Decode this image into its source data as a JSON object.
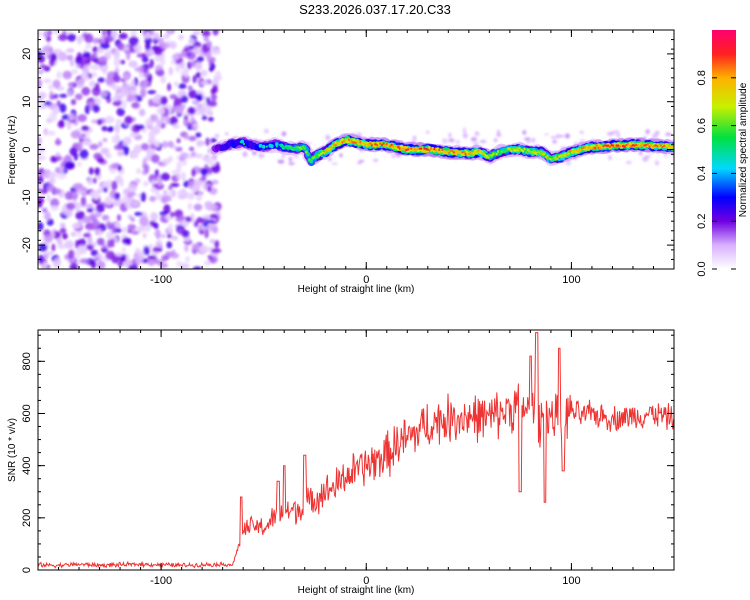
{
  "title": "S233.2026.037.17.20.C33",
  "chart_data": [
    {
      "type": "heatmap",
      "title": "S233.2026.037.17.20.C33",
      "xlabel": "Height of straight line (km)",
      "ylabel": "Frequency (Hz)",
      "xlim": [
        -160,
        150
      ],
      "ylim": [
        -25,
        25
      ],
      "xticks": [
        -100,
        0,
        100
      ],
      "xtick_labels": [
        "-100",
        "0",
        "100"
      ],
      "yticks": [
        -20,
        -10,
        0,
        10,
        20
      ],
      "ytick_labels": [
        "-20",
        "-10",
        "0",
        "10",
        "20"
      ],
      "noise_region_x": [
        -160,
        -74
      ],
      "signal_track": {
        "x": [
          -74,
          -70,
          -65,
          -60,
          -55,
          -50,
          -45,
          -40,
          -35,
          -30,
          -27,
          -25,
          -20,
          -15,
          -10,
          -5,
          0,
          10,
          20,
          30,
          40,
          50,
          55,
          60,
          65,
          70,
          75,
          80,
          85,
          90,
          95,
          100,
          110,
          120,
          130,
          140,
          150
        ],
        "y": [
          0,
          0.5,
          1.2,
          1.5,
          0.8,
          0.5,
          1.0,
          0.5,
          0.2,
          0.5,
          -2.5,
          -1.5,
          -0.5,
          1.0,
          2.0,
          1.5,
          1.0,
          1.0,
          0.0,
          0.0,
          -0.5,
          -0.8,
          -0.5,
          -1.5,
          -0.5,
          0.0,
          0.0,
          -0.5,
          -0.5,
          -2.0,
          -1.5,
          -0.5,
          0.5,
          0.8,
          1.0,
          0.8,
          0.5
        ],
        "amplitude": [
          0.3,
          0.4,
          0.5,
          0.5,
          0.45,
          0.5,
          0.5,
          0.55,
          0.6,
          0.65,
          0.6,
          0.65,
          0.75,
          0.8,
          0.85,
          0.85,
          0.85,
          0.85,
          0.9,
          0.9,
          0.85,
          0.85,
          0.8,
          0.7,
          0.65,
          0.7,
          0.75,
          0.7,
          0.75,
          0.7,
          0.75,
          0.8,
          0.85,
          0.9,
          0.9,
          0.85,
          0.8
        ]
      },
      "colorbar": {
        "label": "Normalized spectral amplitude",
        "range": [
          0,
          1
        ],
        "ticks": [
          0.0,
          0.2,
          0.4,
          0.6,
          0.8
        ],
        "tick_labels": [
          "0.0",
          "0.2",
          "0.4",
          "0.6",
          "0.8"
        ]
      }
    },
    {
      "type": "line",
      "xlabel": "Height of straight line (km)",
      "ylabel": "SNR (10 * v/v)",
      "xlim": [
        -160,
        150
      ],
      "ylim": [
        0,
        920
      ],
      "xticks": [
        -100,
        0,
        100
      ],
      "xtick_labels": [
        "-100",
        "0",
        "100"
      ],
      "yticks": [
        0,
        200,
        400,
        600,
        800
      ],
      "ytick_labels": [
        "0",
        "200",
        "400",
        "600",
        "800"
      ],
      "color": "#ee3333",
      "series": [
        {
          "name": "SNR",
          "x": [
            -160,
            -150,
            -140,
            -130,
            -120,
            -110,
            -100,
            -90,
            -80,
            -70,
            -65,
            -62,
            -60,
            -55,
            -50,
            -45,
            -40,
            -35,
            -30,
            -25,
            -20,
            -15,
            -10,
            -5,
            0,
            5,
            10,
            15,
            20,
            25,
            30,
            40,
            50,
            60,
            70,
            75,
            80,
            82,
            85,
            88,
            90,
            95,
            98,
            100,
            105,
            110,
            115,
            120,
            130,
            140,
            150
          ],
          "values": [
            20,
            18,
            22,
            18,
            20,
            22,
            20,
            18,
            20,
            22,
            20,
            100,
            150,
            170,
            160,
            200,
            220,
            230,
            240,
            280,
            300,
            320,
            360,
            380,
            400,
            420,
            440,
            480,
            500,
            530,
            560,
            580,
            590,
            580,
            620,
            640,
            600,
            640,
            560,
            620,
            580,
            570,
            600,
            610,
            590,
            600,
            590,
            580,
            590,
            600,
            580
          ]
        }
      ],
      "spikes": [
        {
          "x": -61,
          "value": 280
        },
        {
          "x": -43,
          "value": 340
        },
        {
          "x": -40,
          "value": 400
        },
        {
          "x": -30,
          "value": 440
        },
        {
          "x": 83,
          "value": 910
        },
        {
          "x": 87,
          "value": 260
        },
        {
          "x": 80,
          "value": 820
        },
        {
          "x": 94,
          "value": 850
        },
        {
          "x": 96,
          "value": 380
        },
        {
          "x": 75,
          "value": 300
        }
      ]
    }
  ]
}
